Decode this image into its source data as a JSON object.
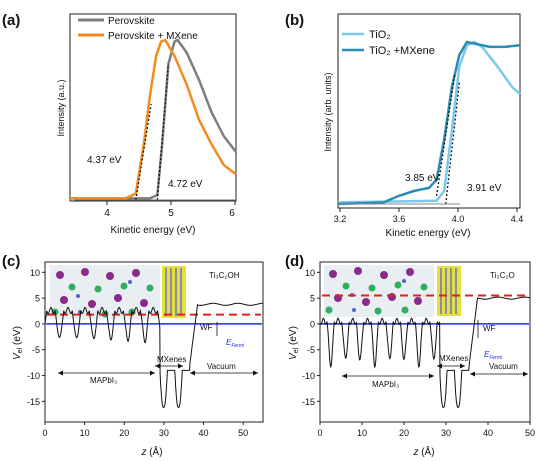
{
  "colors": {
    "perovskite": "#7f7f7f",
    "perovskite_mxene": "#f28c1e",
    "tio2": "#7cc8ec",
    "tio2_mxene": "#2b8db3",
    "potential": "#111111",
    "fermi": "#1f2fe0",
    "vacuum": "#e02020"
  },
  "chart_data": [
    {
      "panel": "(a)",
      "type": "line",
      "xlabel": "Kinetic energy (eV)",
      "ylabel": "Intensity (a.u.)",
      "xlim": [
        3.3,
        6.0
      ],
      "xticks": [
        "4",
        "5",
        "6"
      ],
      "legend": [
        "Perovskite",
        "Perovskite + MXene"
      ],
      "legend_position": "top-left",
      "series": [
        {
          "name": "Perovskite",
          "x": [
            3.3,
            4.6,
            4.72,
            4.8,
            4.9,
            5.0,
            5.05,
            5.2,
            5.4,
            5.6,
            5.8,
            6.0
          ],
          "y": [
            0.01,
            0.01,
            0.03,
            0.35,
            0.85,
            0.99,
            1.0,
            0.92,
            0.75,
            0.55,
            0.4,
            0.3
          ]
        },
        {
          "name": "Perovskite + MXene",
          "x": [
            3.3,
            4.2,
            4.37,
            4.5,
            4.6,
            4.7,
            4.78,
            4.85,
            5.0,
            5.2,
            5.4,
            5.6,
            5.8,
            6.0
          ],
          "y": [
            0.01,
            0.01,
            0.04,
            0.35,
            0.65,
            0.9,
            0.99,
            1.0,
            0.9,
            0.72,
            0.5,
            0.35,
            0.22,
            0.16
          ]
        }
      ],
      "annotations": [
        "4.37 eV",
        "4.72 eV"
      ]
    },
    {
      "panel": "(b)",
      "type": "line",
      "xlabel": "Kinetic energy (eV)",
      "ylabel": "Intensity (arb. units)",
      "xlim": [
        3.2,
        4.4
      ],
      "xticks": [
        "3.2",
        "3.6",
        "4.0",
        "4.4"
      ],
      "legend": [
        "TiO₂",
        "TiO₂ +MXene"
      ],
      "legend_position": "top-left",
      "series": [
        {
          "name": "TiO₂",
          "x": [
            3.2,
            3.85,
            3.9,
            3.95,
            4.0,
            4.05,
            4.1,
            4.15,
            4.25,
            4.35,
            4.4
          ],
          "y": [
            0.01,
            0.02,
            0.08,
            0.45,
            0.85,
            0.98,
            1.0,
            0.97,
            0.85,
            0.72,
            0.68
          ]
        },
        {
          "name": "TiO₂ +MXene",
          "x": [
            3.2,
            3.5,
            3.6,
            3.7,
            3.8,
            3.85,
            3.9,
            3.95,
            4.0,
            4.05,
            4.1,
            4.2,
            4.3,
            4.4
          ],
          "y": [
            0.0,
            0.01,
            0.05,
            0.08,
            0.1,
            0.15,
            0.4,
            0.72,
            0.92,
            1.0,
            0.99,
            0.97,
            0.97,
            0.98
          ]
        }
      ],
      "annotations": [
        "3.85 eV",
        "3.91 eV"
      ]
    },
    {
      "panel": "(c)",
      "type": "line",
      "xlabel": "z (Å)",
      "ylabel": "V_el (eV)",
      "xlim": [
        0,
        55
      ],
      "ylim": [
        -19,
        12
      ],
      "xticks": [
        "0",
        "10",
        "20",
        "30",
        "40",
        "50"
      ],
      "yticks": [
        "10",
        "5",
        "0",
        "-5",
        "-10",
        "-15"
      ],
      "structure_label": "Ti₃C₂OH",
      "fermi_level": 0,
      "vacuum_level": 1.8,
      "region_labels": [
        "MAPbI₃",
        "MXenes",
        "Vacuum",
        "WF",
        "E_Fermi"
      ]
    },
    {
      "panel": "(d)",
      "type": "line",
      "xlabel": "z (Å)",
      "ylabel": "V_el (eV)",
      "xlim": [
        0,
        50
      ],
      "ylim": [
        -19,
        12
      ],
      "xticks": [
        "0",
        "10",
        "20",
        "30",
        "40",
        "50"
      ],
      "yticks": [
        "10",
        "5",
        "0",
        "-5",
        "-10",
        "-15"
      ],
      "structure_label": "Ti₃C₂O",
      "fermi_level": 0,
      "vacuum_level": 5.5,
      "region_labels": [
        "MAPbI₃",
        "MXenes",
        "Vacuum",
        "WF",
        "E_Fermi"
      ]
    }
  ],
  "panels": [
    {
      "label": "(a)"
    },
    {
      "label": "(b)"
    },
    {
      "label": "(c)"
    },
    {
      "label": "(d)"
    }
  ],
  "text": {
    "a_xlabel": "Kinetic energy (eV)",
    "a_ylabel": "Intensity (a.u.)",
    "a_legend1": "Perovskite",
    "a_legend2": "Perovskite + MXene",
    "a_ann1": "4.37 eV",
    "a_ann2": "4.72 eV",
    "a_t1": "4",
    "a_t2": "5",
    "a_t3": "6",
    "b_xlabel": "Kinetic energy (eV)",
    "b_ylabel": "Intensity (arb. units)",
    "b_legend1": "TiO₂",
    "b_legend2": "TiO₂ +MXene",
    "b_ann1": "3.85 eV",
    "b_ann2": "3.91 eV",
    "b_t1": "3.2",
    "b_t2": "3.6",
    "b_t3": "4.0",
    "b_t4": "4.4",
    "c_struct": "Ti₃C₂OH",
    "d_struct": "Ti₃C₂O",
    "mapbi": "MAPbI₃",
    "mxenes": "MXenes",
    "vacuum": "Vacuum",
    "wf": "WF",
    "efermi": "E",
    "efermi_sub": "Fermi",
    "v_el": "V",
    "v_el_sub": "el",
    "v_el_unit": " (eV)",
    "z_label": "z",
    "z_unit": " (Å)",
    "y10": "10",
    "y5": "5",
    "y0": "0",
    "ym5": "-5",
    "ym10": "-10",
    "ym15": "-15",
    "x0": "0",
    "x10": "10",
    "x20": "20",
    "x30": "30",
    "x40": "40",
    "x50": "50"
  }
}
